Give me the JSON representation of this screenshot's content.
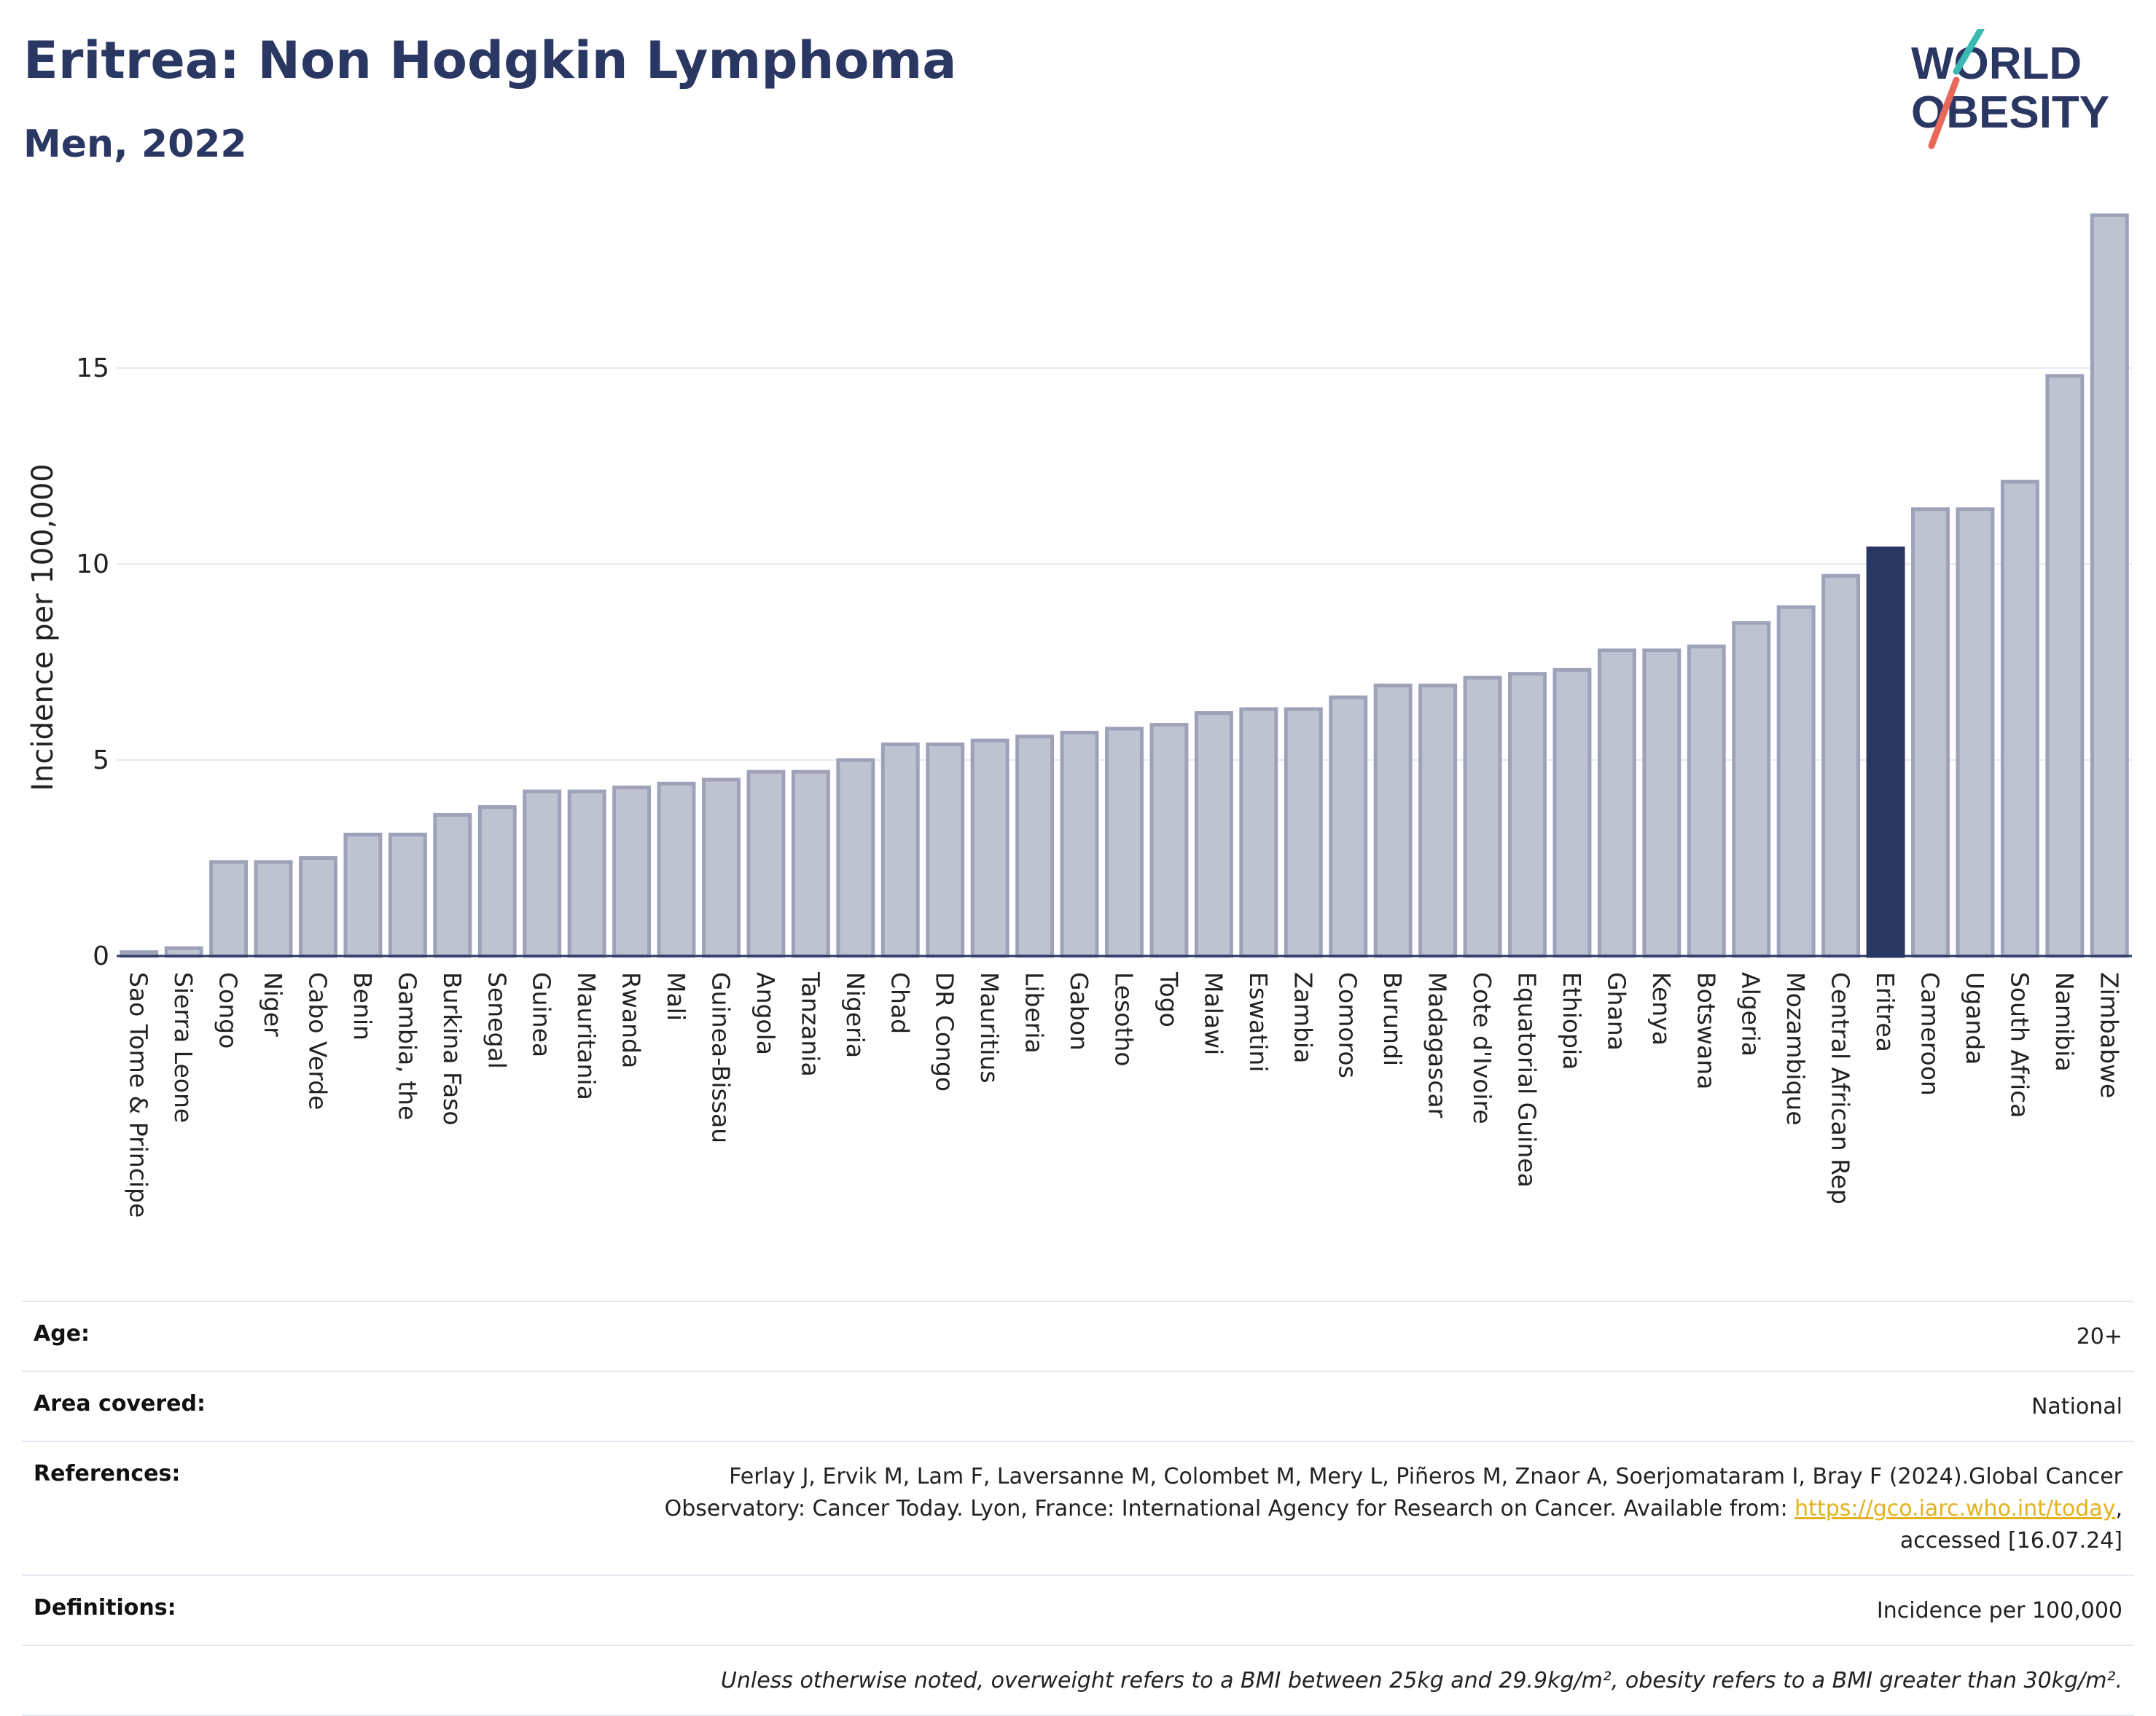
{
  "header": {
    "title": "Eritrea: Non Hodgkin Lymphoma",
    "subtitle": "Men, 2022"
  },
  "logo": {
    "line1": "WORLD",
    "line2": "OBESITY"
  },
  "colors": {
    "title": "#2b3763",
    "bar": "#bfc3d1",
    "bar_stroke": "#9da2b9",
    "highlight": "#2b3763",
    "grid": "#e6e9f1",
    "axis": "#2b3763",
    "link": "#e3b21e"
  },
  "chart_data": {
    "type": "bar",
    "ylabel": "Incidence per 100,000",
    "xlabel": "",
    "ylim": [
      0,
      19
    ],
    "yticks": [
      0,
      5,
      10,
      15
    ],
    "grid": true,
    "highlight": "Eritrea",
    "categories": [
      "Sao Tome & Principe",
      "Sierra Leone",
      "Congo",
      "Niger",
      "Cabo Verde",
      "Benin",
      "Gambia, the",
      "Burkina Faso",
      "Senegal",
      "Guinea",
      "Mauritania",
      "Rwanda",
      "Mali",
      "Guinea-Bissau",
      "Angola",
      "Tanzania",
      "Nigeria",
      "Chad",
      "DR Congo",
      "Mauritius",
      "Liberia",
      "Gabon",
      "Lesotho",
      "Togo",
      "Malawi",
      "Eswatini",
      "Zambia",
      "Comoros",
      "Burundi",
      "Madagascar",
      "Cote d'Ivoire",
      "Equatorial Guinea",
      "Ethiopia",
      "Ghana",
      "Kenya",
      "Botswana",
      "Algeria",
      "Mozambique",
      "Central African Rep",
      "Eritrea",
      "Cameroon",
      "Uganda",
      "South Africa",
      "Namibia",
      "Zimbabwe"
    ],
    "values": [
      0.1,
      0.2,
      2.4,
      2.4,
      2.5,
      3.1,
      3.1,
      3.6,
      3.8,
      4.2,
      4.2,
      4.3,
      4.4,
      4.5,
      4.7,
      4.7,
      5.0,
      5.4,
      5.4,
      5.5,
      5.6,
      5.7,
      5.8,
      5.9,
      6.2,
      6.3,
      6.3,
      6.6,
      6.9,
      6.9,
      7.1,
      7.2,
      7.3,
      7.8,
      7.8,
      7.9,
      8.5,
      8.9,
      9.7,
      10.4,
      11.4,
      11.4,
      12.1,
      14.8,
      18.9
    ]
  },
  "info": {
    "age_label": "Age:",
    "age_value": "20+",
    "area_label": "Area covered:",
    "area_value": "National",
    "references_label": "References:",
    "references_line1": "Ferlay J, Ervik M, Lam F, Laversanne M, Colombet M, Mery L, Piñeros M, Znaor A, Soerjomataram I, Bray F (2024).Global Cancer",
    "references_line2_pre": "Observatory: Cancer Today. Lyon, France: International Agency for Research on Cancer. Available from: ",
    "references_link": "https://gco.iarc.who.int/today",
    "references_line2_post": ",",
    "references_line3": "accessed [16.07.24]",
    "definitions_label": "Definitions:",
    "definitions_value": "Incidence per 100,000",
    "note": "Unless otherwise noted, overweight refers to a BMI between 25kg and 29.9kg/m², obesity refers to a BMI greater than 30kg/m²."
  }
}
